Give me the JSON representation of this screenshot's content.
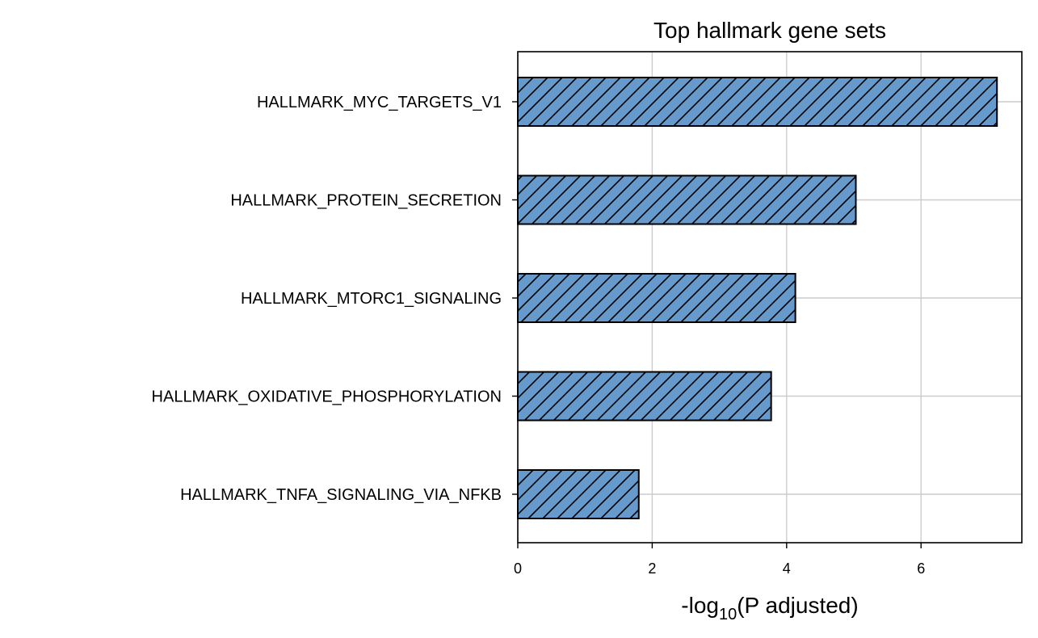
{
  "chart_data": {
    "type": "bar",
    "orientation": "horizontal",
    "title": "Top hallmark gene sets",
    "xlabel": {
      "prefix": "-log",
      "subscript": "10",
      "suffix": "(P adjusted)"
    },
    "ylabel": "",
    "categories": [
      "HALLMARK_MYC_TARGETS_V1",
      "HALLMARK_PROTEIN_SECRETION",
      "HALLMARK_MTORC1_SIGNALING",
      "HALLMARK_OXIDATIVE_PHOSPHORYLATION",
      "HALLMARK_TNFA_SIGNALING_VIA_NFKB"
    ],
    "values": [
      7.13,
      5.03,
      4.13,
      3.77,
      1.8
    ],
    "xlim": [
      0,
      7.5
    ],
    "xticks": [
      "0",
      "2",
      "4",
      "6"
    ],
    "grid": true,
    "bar_color": "#6699cc",
    "bar_edge_color": "#000000",
    "bar_pattern": "diagonal-hatch"
  }
}
